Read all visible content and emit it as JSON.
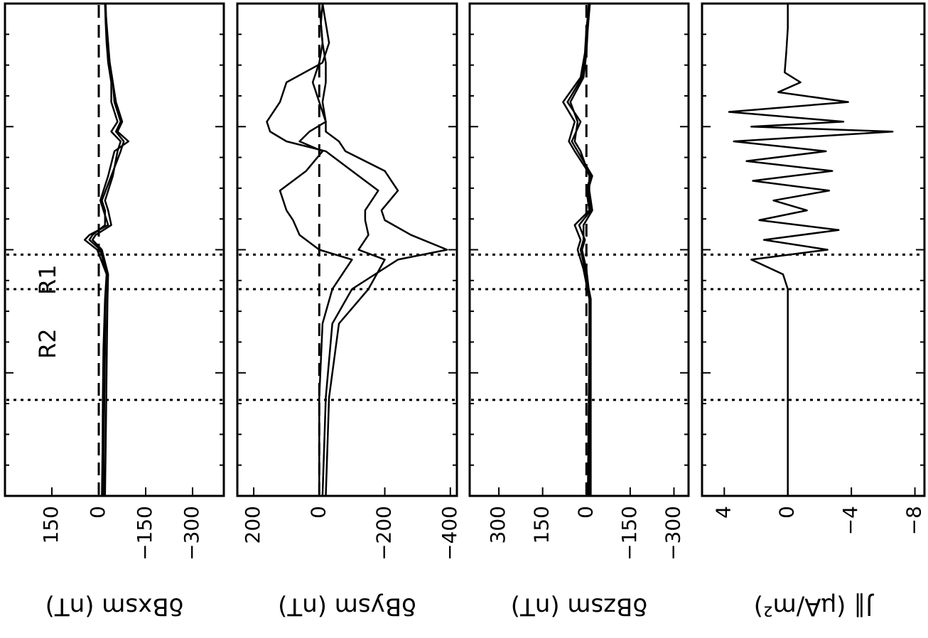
{
  "chart_data": [
    {
      "type": "line",
      "ylabel": "δBxsm (nT)",
      "yticks": [
        "150",
        "0",
        "−150",
        "−300"
      ],
      "tick_values": [
        150,
        0,
        -150,
        -300
      ],
      "ylim": [
        300,
        -400
      ],
      "dashed_zero": true,
      "series": [
        {
          "x": [
            0.0,
            0.1,
            0.2,
            0.3,
            0.4,
            0.45,
            0.5,
            0.52,
            0.53,
            0.55,
            0.58,
            0.6,
            0.65,
            0.7,
            0.72,
            0.74,
            0.76,
            0.8,
            0.84,
            0.88,
            0.92,
            0.96,
            1.0
          ],
          "y": [
            -10,
            -12,
            -13,
            -15,
            -20,
            -25,
            5,
            45,
            30,
            -30,
            -15,
            -5,
            -30,
            -50,
            -95,
            -60,
            -75,
            -55,
            -45,
            -35,
            -30,
            -25,
            -20
          ]
        },
        {
          "x": [
            0.0,
            0.1,
            0.2,
            0.3,
            0.4,
            0.45,
            0.5,
            0.52,
            0.53,
            0.55,
            0.58,
            0.6,
            0.65,
            0.7,
            0.72,
            0.74,
            0.76,
            0.8,
            0.84,
            0.88,
            0.92,
            0.96,
            1.0
          ],
          "y": [
            -20,
            -22,
            -24,
            -26,
            -28,
            -30,
            -10,
            20,
            10,
            -40,
            -30,
            -20,
            -45,
            -60,
            -70,
            -40,
            -60,
            -40,
            -40,
            -30,
            -25,
            -22,
            -20
          ]
        },
        {
          "x": [
            0.0,
            0.1,
            0.2,
            0.3,
            0.4,
            0.45,
            0.5,
            0.52,
            0.53,
            0.55,
            0.58,
            0.6,
            0.65,
            0.7,
            0.72,
            0.74,
            0.76,
            0.8,
            0.84,
            0.88,
            0.92,
            0.96,
            1.0
          ],
          "y": [
            -15,
            -16,
            -18,
            -20,
            -22,
            -26,
            -5,
            30,
            20,
            -20,
            -20,
            -10,
            -40,
            -70,
            -80,
            -55,
            -70,
            -50,
            -45,
            -35,
            -28,
            -24,
            -22
          ]
        }
      ]
    },
    {
      "type": "line",
      "ylabel": "δBysm (nT)",
      "yticks": [
        "200",
        "0",
        "−200",
        "−400"
      ],
      "tick_values": [
        200,
        0,
        -200,
        -400
      ],
      "ylim": [
        250,
        -420
      ],
      "dashed_zero": true,
      "series": [
        {
          "x": [
            0.0,
            0.2,
            0.35,
            0.42,
            0.48,
            0.5,
            0.53,
            0.56,
            0.58,
            0.62,
            0.66,
            0.7,
            0.72,
            0.74,
            0.76,
            0.8,
            0.84,
            0.88,
            0.92,
            0.96,
            1.0
          ],
          "y": [
            -10,
            -20,
            -40,
            -100,
            -240,
            -390,
            -280,
            -200,
            -190,
            -240,
            -200,
            -80,
            -60,
            -20,
            -20,
            -10,
            -20,
            -20,
            -10,
            -5,
            0
          ]
        },
        {
          "x": [
            0.0,
            0.2,
            0.35,
            0.42,
            0.48,
            0.5,
            0.53,
            0.56,
            0.58,
            0.62,
            0.66,
            0.7,
            0.72,
            0.74,
            0.76,
            0.8,
            0.84,
            0.88,
            0.92,
            0.96,
            1.0
          ],
          "y": [
            -20,
            -30,
            -60,
            -150,
            -200,
            -120,
            -150,
            -140,
            -140,
            -180,
            -100,
            -20,
            100,
            150,
            160,
            120,
            100,
            -10,
            -30,
            -20,
            -10
          ]
        },
        {
          "x": [
            0.0,
            0.2,
            0.35,
            0.42,
            0.48,
            0.5,
            0.53,
            0.56,
            0.58,
            0.62,
            0.66,
            0.7,
            0.72,
            0.74,
            0.76,
            0.8,
            0.84,
            0.88,
            0.92,
            0.96,
            1.0
          ],
          "y": [
            0,
            0,
            -10,
            -40,
            -100,
            0,
            60,
            80,
            100,
            120,
            40,
            -10,
            60,
            30,
            -20,
            0,
            20,
            0,
            -10,
            -5,
            -10
          ]
        }
      ]
    },
    {
      "type": "line",
      "ylabel": "δBzsm (nT)",
      "yticks": [
        "300",
        "150",
        "0",
        "−150",
        "−300"
      ],
      "tick_values": [
        300,
        150,
        0,
        -150,
        -300
      ],
      "ylim": [
        400,
        -350
      ],
      "dashed_zero": true,
      "series": [
        {
          "x": [
            0.0,
            0.2,
            0.4,
            0.46,
            0.5,
            0.52,
            0.55,
            0.58,
            0.62,
            0.65,
            0.7,
            0.72,
            0.76,
            0.8,
            0.85,
            0.9,
            0.95,
            1.0
          ],
          "y": [
            -10,
            -10,
            -10,
            10,
            30,
            20,
            40,
            -10,
            0,
            -15,
            40,
            60,
            40,
            80,
            20,
            5,
            0,
            -10
          ]
        },
        {
          "x": [
            0.0,
            0.2,
            0.4,
            0.46,
            0.5,
            0.52,
            0.55,
            0.58,
            0.62,
            0.65,
            0.7,
            0.72,
            0.76,
            0.8,
            0.85,
            0.9,
            0.95,
            1.0
          ],
          "y": [
            -15,
            -15,
            -15,
            5,
            20,
            10,
            10,
            -20,
            -10,
            -10,
            20,
            40,
            30,
            55,
            10,
            0,
            -5,
            -12
          ]
        },
        {
          "x": [
            0.0,
            0.2,
            0.4,
            0.46,
            0.5,
            0.52,
            0.55,
            0.58,
            0.62,
            0.65,
            0.7,
            0.72,
            0.76,
            0.8,
            0.85,
            0.9,
            0.95,
            1.0
          ],
          "y": [
            -5,
            -8,
            -12,
            0,
            15,
            5,
            25,
            -15,
            -5,
            -20,
            30,
            50,
            20,
            65,
            15,
            0,
            -2,
            -8
          ]
        }
      ]
    },
    {
      "type": "line",
      "ylabel": "J∥ (μA/m²)",
      "yticks": [
        "4",
        "0",
        "−4",
        "−8"
      ],
      "tick_values": [
        4,
        0,
        -4,
        -8
      ],
      "ylim": [
        5.4,
        -8.6
      ],
      "dashed_zero": false,
      "series": [
        {
          "x": [
            0.0,
            0.3,
            0.42,
            0.45,
            0.48,
            0.5,
            0.52,
            0.54,
            0.56,
            0.58,
            0.6,
            0.62,
            0.64,
            0.66,
            0.68,
            0.7,
            0.72,
            0.74,
            0.75,
            0.76,
            0.78,
            0.8,
            0.82,
            0.84,
            0.86,
            0.9,
            0.95,
            1.0
          ],
          "y": [
            0,
            0,
            0,
            0.3,
            2.3,
            -2.5,
            1.5,
            -3.2,
            1.8,
            -1.2,
            0.9,
            -2.6,
            2.2,
            -2.8,
            2.6,
            -2.4,
            3.4,
            -6.6,
            2.3,
            -3.5,
            3.7,
            -3.8,
            0.6,
            -0.8,
            0.2,
            0.1,
            0,
            0
          ]
        }
      ]
    }
  ],
  "boundary_labels": [
    "R2",
    "R1"
  ],
  "boundary_markers_x": [
    0.195,
    0.42,
    0.49
  ]
}
